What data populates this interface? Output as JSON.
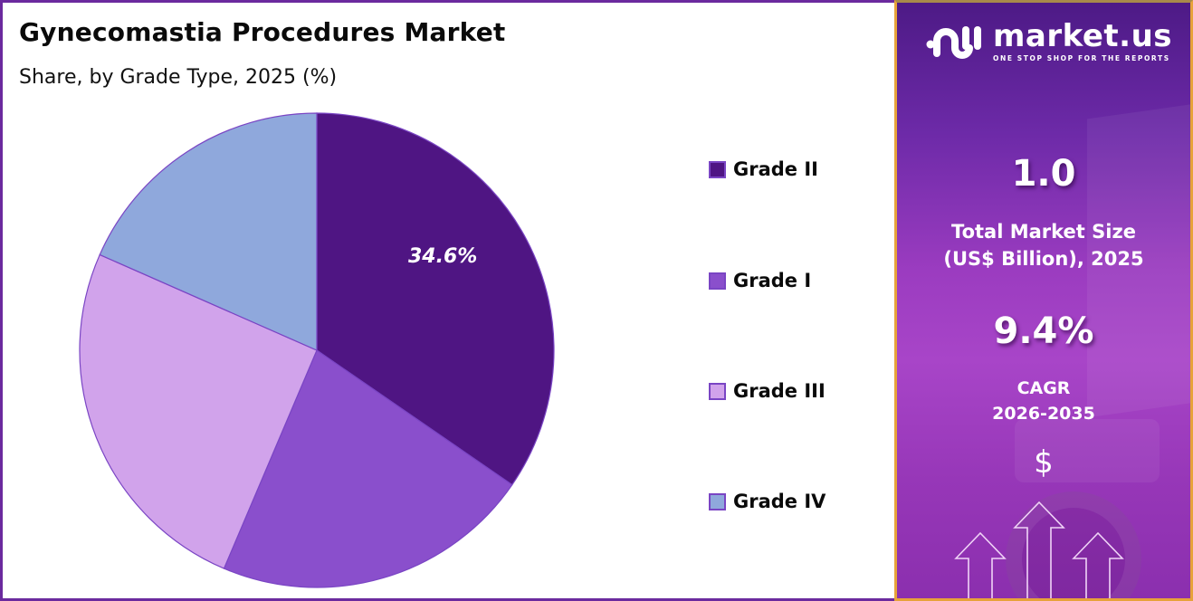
{
  "header": {
    "title": "Gynecomastia Procedures Market",
    "subtitle": "Share, by Grade Type, 2025 (%)"
  },
  "chart_data": {
    "type": "pie",
    "title": "Gynecomastia Procedures Market",
    "subtitle": "Share, by Grade Type, 2025 (%)",
    "categories": [
      "Grade II",
      "Grade I",
      "Grade III",
      "Grade IV"
    ],
    "values": [
      34.6,
      21.8,
      25.2,
      18.4
    ],
    "colors": [
      "#4f1583",
      "#8a4fcc",
      "#d1a3eb",
      "#8fa8dc"
    ],
    "data_labels": [
      {
        "category": "Grade II",
        "label": "34.6%"
      }
    ],
    "start_angle": "12 o'clock, clockwise",
    "legend_position": "right"
  },
  "legend": {
    "items": [
      {
        "label": "Grade II",
        "color": "#4f1583"
      },
      {
        "label": "Grade I",
        "color": "#8a4fcc"
      },
      {
        "label": "Grade III",
        "color": "#d1a3eb"
      },
      {
        "label": "Grade IV",
        "color": "#8fa8dc"
      }
    ]
  },
  "pie": {
    "highlight_label": "34.6%"
  },
  "sidebar": {
    "logo": {
      "name": "market.us",
      "tagline": "ONE STOP SHOP FOR THE REPORTS"
    },
    "market_size": {
      "value": "1.0",
      "caption_line1": "Total Market Size",
      "caption_line2": "(US$ Billion), 2025"
    },
    "cagr": {
      "value": "9.4%",
      "caption_line1": "CAGR",
      "caption_line2": "2026-2035"
    },
    "dollar_symbol": "$",
    "colors": {
      "panel_top": "#4d1a86",
      "panel_mid": "#a845c8",
      "border": "#e7a23a"
    }
  }
}
